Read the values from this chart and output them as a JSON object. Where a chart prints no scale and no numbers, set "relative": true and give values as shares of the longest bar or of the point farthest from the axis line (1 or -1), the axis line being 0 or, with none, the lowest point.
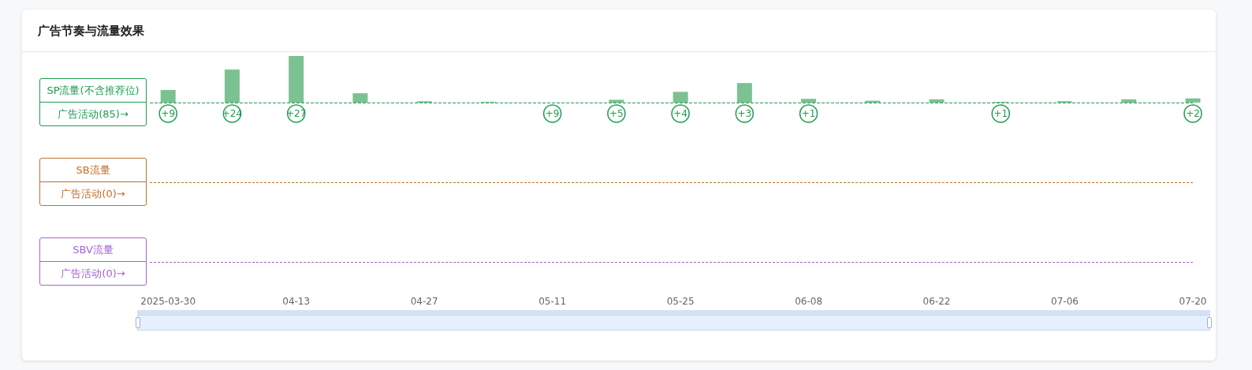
{
  "chart_data": [
    {
      "type": "bar",
      "relative": true,
      "title": "广告节奏与流量效果",
      "ylabel": "SP流量(不含推荐位)",
      "x": [
        "2025-03-30",
        "2025-04-06",
        "2025-04-13",
        "2025-04-20",
        "2025-04-27",
        "2025-05-04",
        "2025-05-11",
        "2025-05-18",
        "2025-05-25",
        "2025-06-01",
        "2025-06-08",
        "2025-06-15",
        "2025-06-22",
        "2025-06-29",
        "2025-07-06",
        "2025-07-13",
        "2025-07-20"
      ],
      "values": [
        0.27,
        0.71,
        1,
        0.2,
        0.03,
        0.015,
        null,
        0.06,
        0.23,
        0.42,
        0.08,
        0.04,
        0.07,
        0.015,
        0.03,
        0.07,
        0.09
      ],
      "color": "#7cc192",
      "xlim": [
        "2025-03-28",
        "2025-07-20"
      ],
      "xticks": [
        {
          "value": "2025-03-30",
          "label": "2025-03-30"
        },
        {
          "value": "2025-04-13",
          "label": "04-13"
        },
        {
          "value": "2025-04-27",
          "label": "04-27"
        },
        {
          "value": "2025-05-11",
          "label": "05-11"
        },
        {
          "value": "2025-05-25",
          "label": "05-25"
        },
        {
          "value": "2025-06-08",
          "label": "06-08"
        },
        {
          "value": "2025-06-22",
          "label": "06-22"
        },
        {
          "value": "2025-07-06",
          "label": "07-06"
        },
        {
          "value": "2025-07-20",
          "label": "07-20"
        }
      ],
      "ref_lines": [
        {
          "axis": "y",
          "value": 0,
          "color": "#1f9d4f",
          "line_style": "dashed"
        }
      ],
      "annotations": [
        "广告活动(85)→",
        {
          "text": "+9",
          "x": "2025-03-30",
          "y": 0
        },
        {
          "text": "+24",
          "x": "2025-04-06",
          "y": 0
        },
        {
          "text": "+27",
          "x": "2025-04-13",
          "y": 0
        },
        {
          "text": "+9",
          "x": "2025-05-11",
          "y": 0
        },
        {
          "text": "+5",
          "x": "2025-05-18",
          "y": 0
        },
        {
          "text": "+4",
          "x": "2025-05-25",
          "y": 0
        },
        {
          "text": "+3",
          "x": "2025-06-01",
          "y": 0
        },
        {
          "text": "+1",
          "x": "2025-06-08",
          "y": 0
        },
        {
          "text": "+1",
          "x": "2025-06-29",
          "y": 0
        },
        {
          "text": "+2",
          "x": "2025-07-20",
          "y": 0
        }
      ]
    },
    {
      "type": "other",
      "ylabel": "SB流量",
      "color": "#c0702a",
      "annotations": [
        "广告活动(0)→"
      ]
    },
    {
      "type": "other",
      "ylabel": "SBV流量",
      "color": "#a463d0",
      "annotations": [
        "广告活动(0)→"
      ]
    }
  ]
}
